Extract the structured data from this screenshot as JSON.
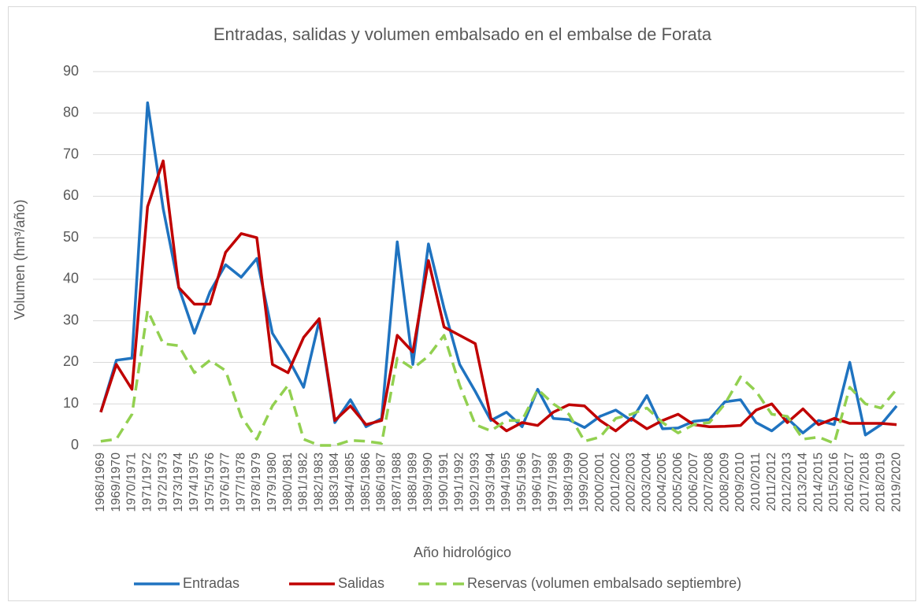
{
  "chart_data": {
    "type": "line",
    "title": "Entradas, salidas y volumen embalsado en el embalse de Forata",
    "x_label": "Año hidrológico",
    "y_label": "Volumen (hm³/año)",
    "categories": [
      "1968/1969",
      "1969/1970",
      "1970/1971",
      "1971/1972",
      "1972/1973",
      "1973/1974",
      "1974/1975",
      "1975/1976",
      "1976/1977",
      "1977/1978",
      "1978/1979",
      "1979/1980",
      "1980/1981",
      "1981/1982",
      "1982/1983",
      "1983/1984",
      "1984/1985",
      "1985/1986",
      "1986/1987",
      "1987/1988",
      "1988/1989",
      "1989/1990",
      "1990/1991",
      "1991/1992",
      "1992/1993",
      "1993/1994",
      "1994/1995",
      "1995/1996",
      "1996/1997",
      "1997/1998",
      "1998/1999",
      "1999/2000",
      "2000/2001",
      "2001/2002",
      "2002/2003",
      "2003/2004",
      "2004/2005",
      "2005/2006",
      "2006/2007",
      "2007/2008",
      "2008/2009",
      "2009/2010",
      "2010/2011",
      "2011/2012",
      "2012/2013",
      "2013/2014",
      "2014/2015",
      "2015/2016",
      "2016/2017",
      "2017/2018",
      "2018/2019",
      "2019/2020"
    ],
    "series": [
      {
        "name": "Entradas",
        "color": "#1f73c0",
        "dashed": false,
        "values": [
          8,
          20.5,
          21,
          82.5,
          57,
          38,
          27,
          37,
          43.5,
          40.5,
          45,
          27,
          21,
          14,
          30,
          5.5,
          11,
          4.5,
          6.5,
          49,
          19.5,
          48.5,
          33,
          19.5,
          13,
          6,
          8,
          4.5,
          13.5,
          6.5,
          6.2,
          4.3,
          7,
          8.5,
          6,
          12,
          4,
          4.2,
          5.8,
          6.2,
          10.5,
          11,
          5.5,
          3.5,
          6.5,
          3,
          6,
          5,
          20,
          2.5,
          5,
          9.5
        ]
      },
      {
        "name": "Salidas",
        "color": "#c00000",
        "dashed": false,
        "values": [
          8,
          19.5,
          13.5,
          57.5,
          68.5,
          38,
          34,
          34,
          46.5,
          51,
          50,
          19.5,
          17.5,
          26,
          30.5,
          6,
          9.5,
          5,
          6,
          26.5,
          22.5,
          44.5,
          28.5,
          26.5,
          24.5,
          6.5,
          3.5,
          5.5,
          4.8,
          8,
          9.8,
          9.5,
          6,
          3.5,
          6.5,
          4,
          6,
          7.5,
          5,
          4.5,
          4.6,
          4.8,
          8.5,
          10,
          5.5,
          8.8,
          5,
          6.5,
          5.3,
          5.3,
          5.3,
          5
        ]
      },
      {
        "name": "Reservas (volumen embalsado septiembre)",
        "color": "#92d050",
        "dashed": true,
        "values": [
          1,
          1.5,
          7.5,
          32.5,
          24.5,
          24,
          17.5,
          20.5,
          18,
          7,
          1.5,
          9.5,
          14.5,
          1.5,
          0,
          0,
          1.2,
          1,
          0.5,
          21,
          18.5,
          21.5,
          26.5,
          14.5,
          5,
          3.5,
          6,
          6,
          13.5,
          10,
          7.5,
          1,
          2,
          6.5,
          7.5,
          9,
          5.5,
          3,
          5,
          5.5,
          10,
          16.5,
          13,
          7.5,
          7,
          1.5,
          2,
          0.5,
          14,
          10,
          9,
          13.5
        ]
      }
    ],
    "ylim": [
      0,
      90
    ],
    "yticks": [
      0,
      10,
      20,
      30,
      40,
      50,
      60,
      70,
      80,
      90
    ],
    "grid": true,
    "legend": "bottom"
  }
}
